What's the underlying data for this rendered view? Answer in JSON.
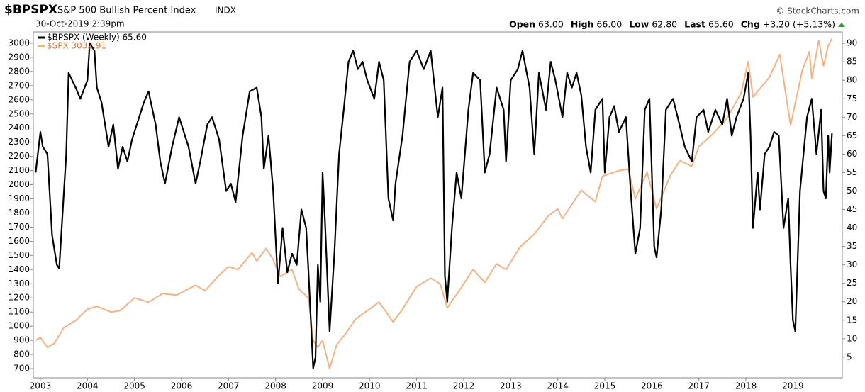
{
  "chart_data": {
    "type": "line",
    "title": "$BPSPX",
    "subtitle": "S&P 500 Bullish Percent Index",
    "exchange": "INDX",
    "date": "30-Oct-2019 2:39pm",
    "credit": "© StockCharts.com",
    "quote": [
      {
        "label": "Open",
        "value": "63.00"
      },
      {
        "label": "High",
        "value": "66.00"
      },
      {
        "label": "Low",
        "value": "62.80"
      },
      {
        "label": "Last",
        "value": "65.60"
      },
      {
        "label": "Chg",
        "value": "+3.20 (+5.13%)"
      }
    ],
    "xlim": [
      2002.85,
      2020.05
    ],
    "xticks": [
      2003,
      2004,
      2005,
      2006,
      2007,
      2008,
      2009,
      2010,
      2011,
      2012,
      2013,
      2014,
      2015,
      2016,
      2017,
      2018,
      2019
    ],
    "ylim": [
      635,
      3080
    ],
    "yticks": [
      700,
      800,
      900,
      1000,
      1100,
      1200,
      1300,
      1400,
      1500,
      1600,
      1700,
      1800,
      1900,
      2000,
      2100,
      2200,
      2300,
      2400,
      2500,
      2600,
      2700,
      2800,
      2900,
      3000
    ],
    "y2lim": [
      -0.6,
      93.1
    ],
    "y2ticks": [
      5,
      10,
      15,
      20,
      25,
      30,
      35,
      40,
      45,
      50,
      55,
      60,
      65,
      70,
      75,
      80,
      85,
      90
    ],
    "grid": false,
    "legend": "top-left",
    "series": [
      {
        "name": "$SPX 3032.91",
        "color": "#f4b183",
        "axis": "y",
        "x": [
          2002.9,
          2003.0,
          2003.15,
          2003.3,
          2003.5,
          2003.75,
          2004.0,
          2004.2,
          2004.5,
          2004.7,
          2005.0,
          2005.3,
          2005.6,
          2005.9,
          2006.3,
          2006.5,
          2006.8,
          2007.0,
          2007.2,
          2007.5,
          2007.6,
          2007.8,
          2007.95,
          2008.1,
          2008.35,
          2008.5,
          2008.7,
          2008.8,
          2008.9,
          2009.0,
          2009.15,
          2009.3,
          2009.5,
          2009.7,
          2009.95,
          2010.2,
          2010.5,
          2010.7,
          2011.0,
          2011.3,
          2011.5,
          2011.65,
          2011.9,
          2012.2,
          2012.45,
          2012.7,
          2012.9,
          2013.2,
          2013.5,
          2013.8,
          2014.0,
          2014.1,
          2014.5,
          2014.8,
          2014.95,
          2015.3,
          2015.5,
          2015.65,
          2015.9,
          2016.1,
          2016.4,
          2016.6,
          2016.85,
          2017.0,
          2017.3,
          2017.6,
          2017.9,
          2018.05,
          2018.15,
          2018.5,
          2018.72,
          2018.95,
          2019.2,
          2019.35,
          2019.4,
          2019.55,
          2019.65,
          2019.75,
          2019.83
        ],
        "values": [
          900,
          920,
          850,
          880,
          990,
          1040,
          1120,
          1140,
          1100,
          1110,
          1200,
          1170,
          1230,
          1220,
          1290,
          1250,
          1360,
          1420,
          1400,
          1520,
          1460,
          1550,
          1470,
          1350,
          1400,
          1260,
          1200,
          900,
          850,
          900,
          700,
          870,
          950,
          1050,
          1110,
          1170,
          1030,
          1120,
          1280,
          1340,
          1300,
          1130,
          1250,
          1400,
          1310,
          1440,
          1400,
          1560,
          1650,
          1780,
          1830,
          1760,
          1960,
          1880,
          2060,
          2100,
          2110,
          1900,
          2090,
          1830,
          2070,
          2170,
          2130,
          2270,
          2360,
          2470,
          2650,
          2870,
          2620,
          2760,
          2920,
          2420,
          2810,
          2940,
          2750,
          3020,
          2840,
          2980,
          3032.91
        ]
      },
      {
        "name": "$BPSPX (Weekly) 65.60",
        "color": "#000000",
        "axis": "y2",
        "x": [
          2002.9,
          2003.0,
          2003.05,
          2003.15,
          2003.25,
          2003.35,
          2003.4,
          2003.55,
          2003.6,
          2003.75,
          2003.85,
          2004.0,
          2004.05,
          2004.15,
          2004.2,
          2004.3,
          2004.45,
          2004.55,
          2004.65,
          2004.75,
          2004.85,
          2004.95,
          2005.2,
          2005.3,
          2005.45,
          2005.55,
          2005.65,
          2005.8,
          2005.95,
          2006.15,
          2006.3,
          2006.4,
          2006.55,
          2006.65,
          2006.8,
          2006.95,
          2007.05,
          2007.15,
          2007.3,
          2007.45,
          2007.6,
          2007.7,
          2007.75,
          2007.85,
          2007.95,
          2008.05,
          2008.15,
          2008.25,
          2008.35,
          2008.45,
          2008.55,
          2008.65,
          2008.7,
          2008.8,
          2008.85,
          2008.9,
          2008.95,
          2009.0,
          2009.05,
          2009.15,
          2009.25,
          2009.35,
          2009.45,
          2009.55,
          2009.65,
          2009.75,
          2009.85,
          2009.95,
          2010.1,
          2010.2,
          2010.3,
          2010.4,
          2010.5,
          2010.55,
          2010.7,
          2010.85,
          2011.0,
          2011.15,
          2011.3,
          2011.45,
          2011.55,
          2011.6,
          2011.65,
          2011.75,
          2011.85,
          2011.95,
          2012.1,
          2012.2,
          2012.35,
          2012.45,
          2012.55,
          2012.7,
          2012.85,
          2012.9,
          2013.0,
          2013.15,
          2013.25,
          2013.4,
          2013.5,
          2013.6,
          2013.75,
          2013.85,
          2013.95,
          2014.1,
          2014.2,
          2014.3,
          2014.4,
          2014.5,
          2014.6,
          2014.7,
          2014.8,
          2014.95,
          2015.0,
          2015.1,
          2015.2,
          2015.3,
          2015.45,
          2015.55,
          2015.65,
          2015.75,
          2015.85,
          2015.95,
          2016.05,
          2016.1,
          2016.2,
          2016.3,
          2016.45,
          2016.55,
          2016.7,
          2016.85,
          2016.95,
          2017.1,
          2017.2,
          2017.35,
          2017.5,
          2017.6,
          2017.7,
          2017.8,
          2017.95,
          2018.05,
          2018.1,
          2018.15,
          2018.25,
          2018.3,
          2018.4,
          2018.5,
          2018.6,
          2018.7,
          2018.8,
          2018.9,
          2018.95,
          2019.0,
          2019.05,
          2019.15,
          2019.3,
          2019.4,
          2019.5,
          2019.6,
          2019.65,
          2019.7,
          2019.75,
          2019.78,
          2019.83
        ],
        "values": [
          55,
          66,
          62,
          60,
          38,
          30,
          29,
          60,
          82,
          78,
          75,
          80,
          90,
          88,
          78,
          74,
          62,
          68,
          56,
          62,
          58,
          64,
          74,
          77,
          68,
          58,
          52,
          62,
          70,
          62,
          52,
          58,
          68,
          70,
          64,
          50,
          52,
          47,
          65,
          77,
          78,
          70,
          56,
          65,
          50,
          25,
          40,
          28,
          33,
          30,
          45,
          40,
          28,
          2,
          5,
          30,
          20,
          55,
          42,
          12,
          33,
          60,
          72,
          85,
          88,
          83,
          85,
          80,
          75,
          85,
          80,
          48,
          42,
          52,
          65,
          85,
          88,
          83,
          88,
          70,
          78,
          27,
          20,
          40,
          55,
          48,
          72,
          82,
          80,
          55,
          60,
          78,
          72,
          58,
          80,
          83,
          88,
          78,
          60,
          82,
          72,
          85,
          80,
          70,
          82,
          78,
          82,
          76,
          62,
          55,
          72,
          75,
          55,
          70,
          73,
          66,
          70,
          50,
          33,
          40,
          72,
          75,
          35,
          32,
          45,
          72,
          75,
          70,
          62,
          58,
          70,
          72,
          66,
          72,
          68,
          75,
          65,
          70,
          75,
          82,
          65,
          40,
          55,
          45,
          60,
          62,
          66,
          65,
          40,
          48,
          30,
          15,
          12,
          50,
          70,
          75,
          60,
          72,
          50,
          48,
          65,
          55,
          65.6
        ]
      }
    ]
  }
}
